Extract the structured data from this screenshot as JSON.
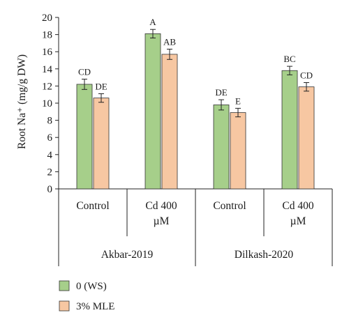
{
  "chart_data": {
    "type": "bar",
    "ylabel": "Root Na⁺ (mg/g DW)",
    "ylim": [
      0,
      20
    ],
    "yticks": [
      0,
      2,
      4,
      6,
      8,
      10,
      12,
      14,
      16,
      18,
      20
    ],
    "grid": false,
    "legend_position": "bottom-left",
    "groups": [
      {
        "label": "Akbar-2019",
        "categories": [
          {
            "label": [
              "Control"
            ]
          },
          {
            "label": [
              "Cd 400",
              "µM"
            ]
          }
        ]
      },
      {
        "label": "Dilkash-2020",
        "categories": [
          {
            "label": [
              "Control"
            ]
          },
          {
            "label": [
              "Cd 400",
              "µM"
            ]
          }
        ]
      }
    ],
    "series": [
      {
        "name": "0 (WS)",
        "color": "#a6cf8a",
        "values": [
          12.2,
          18.1,
          9.8,
          13.8
        ],
        "errors": [
          0.6,
          0.5,
          0.6,
          0.5
        ],
        "significance": [
          "CD",
          "A",
          "DE",
          "BC"
        ]
      },
      {
        "name": "3% MLE",
        "color": "#f7c7a2",
        "values": [
          10.6,
          15.7,
          8.9,
          11.9
        ],
        "errors": [
          0.5,
          0.6,
          0.5,
          0.5
        ],
        "significance": [
          "DE",
          "AB",
          "E",
          "CD"
        ]
      }
    ]
  }
}
